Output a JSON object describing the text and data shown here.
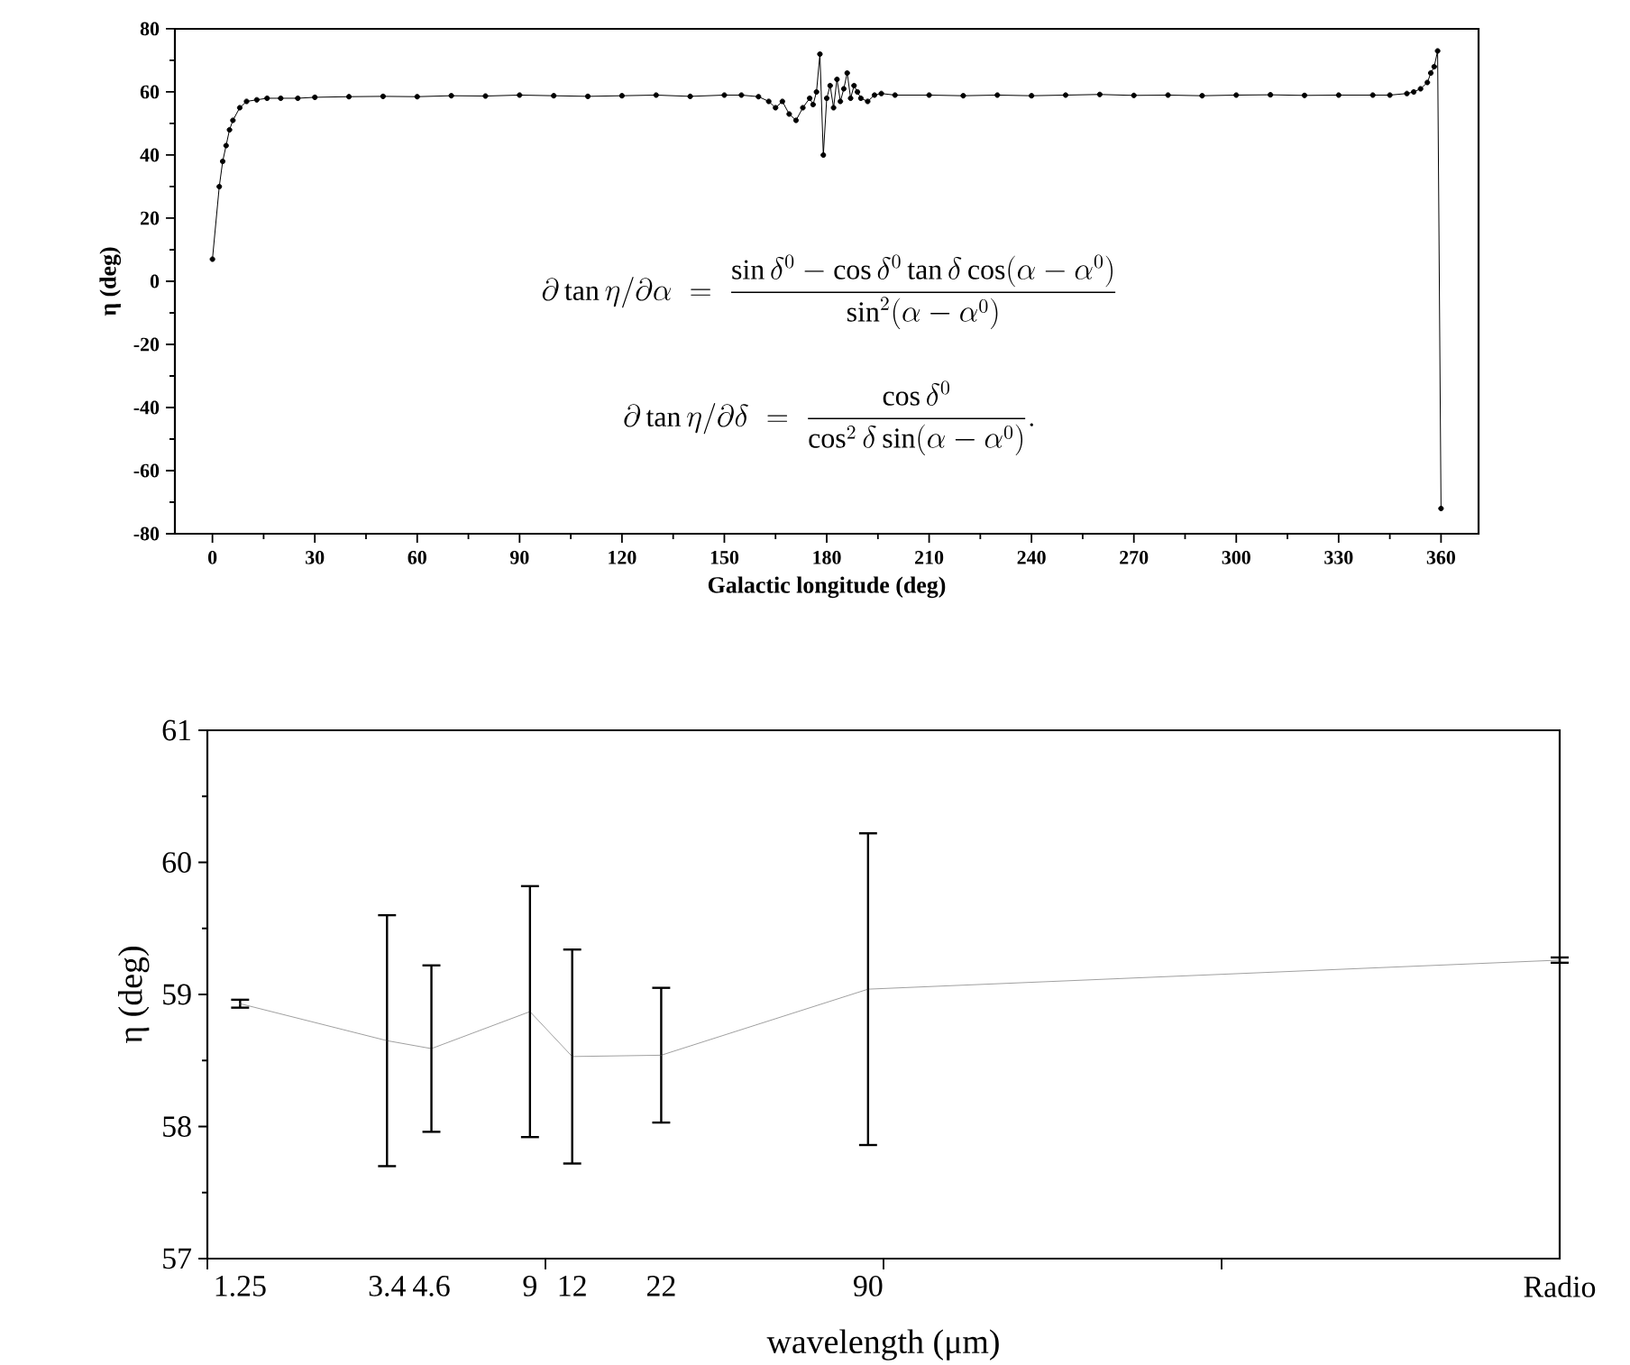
{
  "chart_data": [
    {
      "type": "line",
      "xlabel": "Galactic longitude (deg)",
      "ylabel": "η (deg)",
      "x": [
        0,
        2,
        3,
        4,
        5,
        6,
        8,
        10,
        13,
        16,
        20,
        25,
        30,
        40,
        50,
        60,
        70,
        80,
        90,
        100,
        110,
        120,
        130,
        140,
        150,
        155,
        160,
        163,
        165,
        167,
        169,
        171,
        173,
        175,
        176,
        177,
        178,
        179,
        180,
        181,
        182,
        183,
        184,
        185,
        186,
        187,
        188,
        189,
        190,
        192,
        194,
        196,
        200,
        210,
        220,
        230,
        240,
        250,
        260,
        270,
        280,
        290,
        300,
        310,
        320,
        330,
        340,
        345,
        350,
        352,
        354,
        356,
        357,
        358,
        359,
        360
      ],
      "series": [
        {
          "color": "#000000",
          "values": [
            7,
            30,
            38,
            43,
            48,
            51,
            55,
            57,
            57.5,
            58,
            58,
            58,
            58.3,
            58.5,
            58.6,
            58.5,
            58.8,
            58.7,
            59,
            58.8,
            58.6,
            58.8,
            59,
            58.6,
            59,
            59,
            58.5,
            57,
            55,
            57,
            53,
            51,
            55,
            58,
            56,
            60,
            72,
            40,
            58,
            62,
            55,
            64,
            57,
            61,
            66,
            58,
            62,
            60,
            58,
            57,
            59,
            59.5,
            59,
            59,
            58.8,
            59,
            58.8,
            59,
            59.2,
            58.9,
            59,
            58.8,
            59,
            59.1,
            58.9,
            59,
            59,
            59,
            59.5,
            60,
            61,
            63,
            66,
            68,
            73,
            -72
          ]
        }
      ],
      "xlim": [
        -11,
        371
      ],
      "ylim": [
        -80,
        80
      ],
      "xticks": [
        0,
        30,
        60,
        90,
        120,
        150,
        180,
        210,
        240,
        270,
        300,
        330,
        360
      ],
      "yticks": [
        -80,
        -60,
        -40,
        -20,
        0,
        20,
        40,
        60,
        80
      ],
      "marker": "circle",
      "line_style": "solid",
      "legend": false,
      "grid": false,
      "annotations": [
        "\\partial\\tan\\eta/\\partial\\alpha \\;=\\; \\frac{\\sin\\delta^0-\\cos\\delta^0\\tan\\delta\\cos(\\alpha-\\alpha^0)}{\\sin^2(\\alpha-\\alpha^0)}",
        "\\partial\\tan\\eta/\\partial\\delta \\;=\\; \\frac{\\cos\\delta^0}{\\cos^2\\delta\\sin(\\alpha-\\alpha^0)}."
      ]
    },
    {
      "type": "line",
      "xlabel": "wavelength (μm)",
      "ylabel": "η (deg)",
      "log": "x",
      "x": [
        1.25,
        3.4,
        4.6,
        9,
        12,
        22,
        90,
        10000
      ],
      "series": [
        {
          "color": "#a0a0a0",
          "values": [
            58.93,
            58.65,
            58.59,
            58.87,
            58.53,
            58.54,
            59.04,
            59.26
          ],
          "errors": [
            0.03,
            0.95,
            0.63,
            0.95,
            0.81,
            0.51,
            1.18,
            0.02
          ]
        }
      ],
      "xlim": [
        1,
        10000
      ],
      "ylim": [
        57,
        61
      ],
      "xticks": [
        {
          "value": 1,
          "label": null
        },
        {
          "value": 1.25,
          "label": "1.25"
        },
        {
          "value": 3.4,
          "label": "3.4"
        },
        {
          "value": 4.6,
          "label": "4.6"
        },
        {
          "value": 9,
          "label": "9"
        },
        {
          "value": 10,
          "label": null
        },
        {
          "value": 12,
          "label": "12"
        },
        {
          "value": 22,
          "label": "22"
        },
        {
          "value": 90,
          "label": "90"
        },
        {
          "value": 100,
          "label": null
        },
        {
          "value": 1000,
          "label": null
        },
        {
          "value": 10000,
          "label": "Radio"
        }
      ],
      "yticks": [
        57,
        58,
        59,
        60,
        61
      ],
      "marker": "none",
      "line_style": "solid",
      "legend": false,
      "grid": false
    }
  ]
}
